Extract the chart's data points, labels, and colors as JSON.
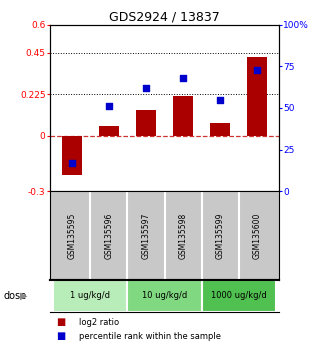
{
  "title": "GDS2924 / 13837",
  "samples": [
    "GSM135595",
    "GSM135596",
    "GSM135597",
    "GSM135598",
    "GSM135599",
    "GSM135600"
  ],
  "log2_ratio": [
    -0.21,
    0.05,
    0.14,
    0.215,
    0.07,
    0.425
  ],
  "percentile_rank": [
    17,
    51,
    62,
    68,
    55,
    73
  ],
  "dose_groups": [
    {
      "label": "1 ug/kg/d",
      "samples": [
        0,
        1
      ],
      "color": "#b8ecb8"
    },
    {
      "label": "10 ug/kg/d",
      "samples": [
        2,
        3
      ],
      "color": "#80d880"
    },
    {
      "label": "1000 ug/kg/d",
      "samples": [
        4,
        5
      ],
      "color": "#50c050"
    }
  ],
  "ylim_left": [
    -0.3,
    0.6
  ],
  "ylim_right": [
    0,
    100
  ],
  "yticks_left": [
    -0.3,
    0.0,
    0.225,
    0.45,
    0.6
  ],
  "yticks_right": [
    0,
    25,
    50,
    75,
    100
  ],
  "ytick_labels_left": [
    "-0.3",
    "0",
    "0.225",
    "0.45",
    "0.6"
  ],
  "ytick_labels_right": [
    "0",
    "25",
    "50",
    "75",
    "100%"
  ],
  "hline_y": [
    0.225,
    0.45
  ],
  "bar_color": "#aa0000",
  "dot_color": "#0000cc",
  "zero_line_color": "#cc3333",
  "background_color": "#ffffff",
  "plot_bg_color": "#ffffff",
  "sample_panel_color": "#c8c8c8",
  "dose_label": "dose",
  "legend_bar": "log2 ratio",
  "legend_dot": "percentile rank within the sample",
  "bar_width": 0.55
}
